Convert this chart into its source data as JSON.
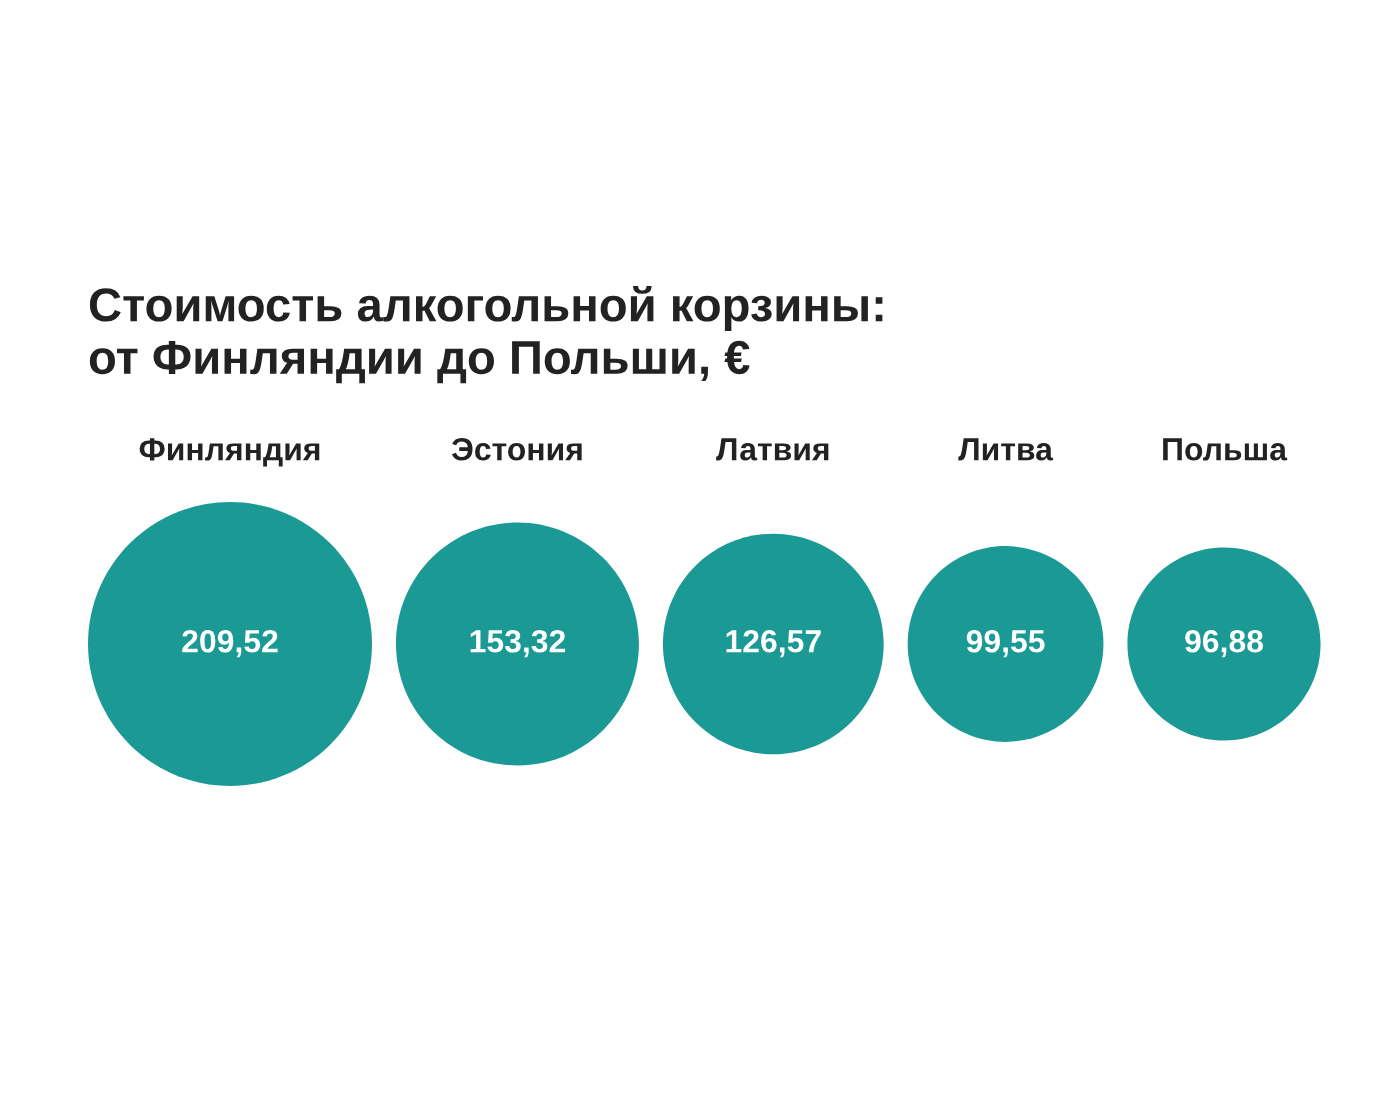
{
  "chart_data": {
    "type": "other",
    "title": "Стоимость алкогольной корзины:\nот Финляндии до Польши, €",
    "categories": [
      "Финляндия",
      "Эстония",
      "Латвия",
      "Литва",
      "Польша"
    ],
    "values": [
      209.52,
      153.32,
      126.57,
      99.55,
      96.88
    ],
    "value_labels": [
      "209,52",
      "153,32",
      "126,57",
      "99,55",
      "96,88"
    ],
    "color": "#1b9a95"
  }
}
